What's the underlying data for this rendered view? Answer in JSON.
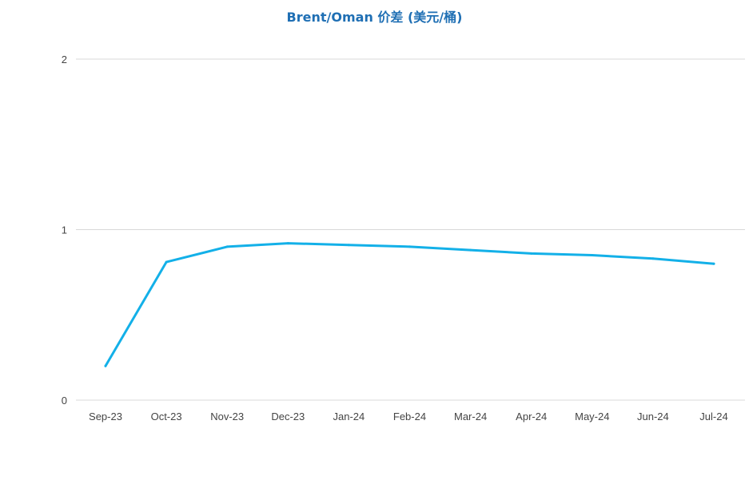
{
  "chart_data": {
    "type": "line",
    "title": "Brent/Oman 价差 (美元/桶)",
    "categories": [
      "Sep-23",
      "Oct-23",
      "Nov-23",
      "Dec-23",
      "Jan-24",
      "Feb-24",
      "Mar-24",
      "Apr-24",
      "May-24",
      "Jun-24",
      "Jul-24"
    ],
    "series": [
      {
        "values": [
          0.2,
          0.81,
          0.9,
          0.92,
          0.91,
          0.9,
          0.88,
          0.86,
          0.85,
          0.83,
          0.8
        ]
      }
    ],
    "ylim": [
      0,
      2
    ],
    "yticks": [
      0,
      1,
      2
    ],
    "grid": true,
    "legend": "none",
    "colors": {
      "line": "#13B0E8",
      "title": "#1F6FB4",
      "grid": "#D9D9D9"
    }
  }
}
